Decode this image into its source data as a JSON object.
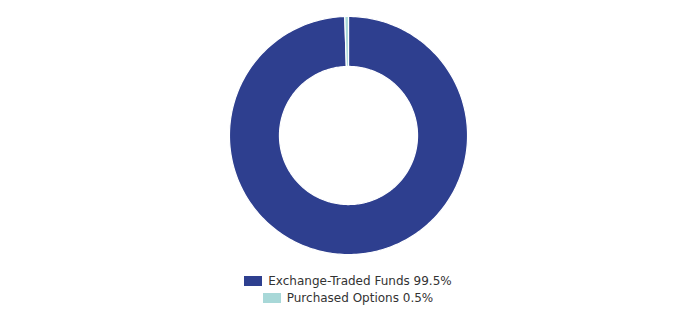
{
  "chart_data": {
    "type": "donut",
    "categories": [
      "Exchange-Traded Funds 99.5%",
      "Purchased Options 0.5%"
    ],
    "values": [
      99.5,
      0.5
    ],
    "colors": [
      "#2e3f8f",
      "#a8d8d8"
    ],
    "legend": "bottom"
  }
}
